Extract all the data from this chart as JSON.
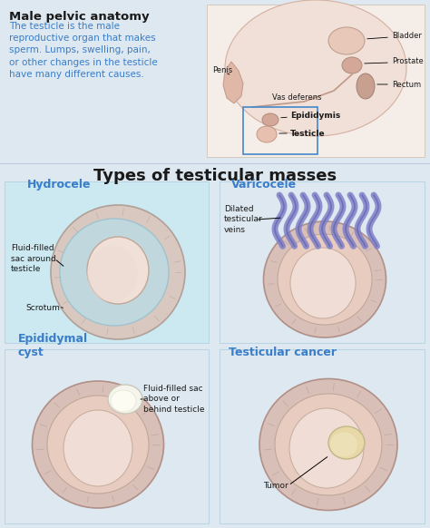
{
  "bg_color": "#dde8f0",
  "title": "Types of testicular masses",
  "title_fontsize": 13,
  "title_color": "#1a1a1a",
  "top_left_title": "Male pelvic anatomy",
  "top_left_body": "The testicle is the male\nreproductive organ that makes\nsperm. Lumps, swelling, pain,\nor other changes in the testicle\nhave many different causes.",
  "top_left_title_color": "#1a1a1a",
  "top_left_body_color": "#3a7dc9",
  "flesh_color": "#e8b8a8",
  "flesh_dark": "#c89080",
  "flesh_light": "#f0ccc0",
  "fluid_color": "#b8dde8",
  "scrotum_color": "#d4a090",
  "tumor_color": "#e8d8b0",
  "vein_color": "#8080c8",
  "cyst_color": "#f0f0e8",
  "anatomy_bg": "#f5e8e0"
}
